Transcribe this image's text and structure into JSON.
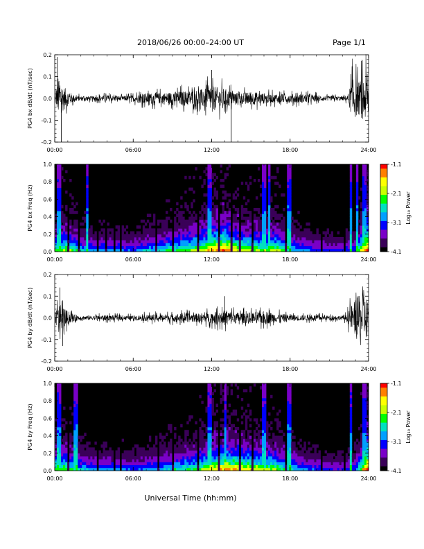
{
  "header": {
    "title": "2018/06/26  00:00–24:00 UT",
    "page": "Page 1/1"
  },
  "footer": {
    "xlabel": "Universal Time (hh:mm)"
  },
  "colors": {
    "trace": "#000000",
    "background": "#ffffff",
    "spectrogram_background": "#000000",
    "colormap": [
      "#000000",
      "#3a0058",
      "#7a00c8",
      "#0000ff",
      "#00a0ff",
      "#00e0c0",
      "#00ff00",
      "#c8ff00",
      "#ffff00",
      "#ff8000",
      "#ff0000"
    ]
  },
  "chart_data": [
    {
      "type": "line",
      "ylabel": "PG4 bx dB/dt (nT/sec)",
      "xlim": [
        0,
        24
      ],
      "ylim": [
        -0.2,
        0.2
      ],
      "xticks": [
        "00:00",
        "06:00",
        "12:00",
        "18:00",
        "24:00"
      ],
      "yticks": [
        "-0.2",
        "-0.1",
        "0.0",
        "0.1",
        "0.2"
      ],
      "envelope": {
        "x": [
          0.0,
          0.3,
          0.6,
          1.0,
          1.5,
          2.0,
          3.0,
          4.0,
          5.0,
          6.0,
          7.0,
          8.0,
          9.0,
          10.0,
          11.0,
          11.5,
          12.0,
          12.5,
          13.0,
          13.5,
          14.0,
          15.0,
          16.0,
          16.5,
          17.0,
          18.0,
          19.0,
          20.0,
          21.0,
          22.0,
          22.4,
          22.8,
          23.2,
          23.6,
          24.0
        ],
        "amp": [
          0.03,
          0.16,
          0.12,
          0.07,
          0.03,
          0.02,
          0.02,
          0.03,
          0.02,
          0.03,
          0.05,
          0.05,
          0.06,
          0.07,
          0.08,
          0.09,
          0.12,
          0.1,
          0.09,
          0.07,
          0.05,
          0.06,
          0.05,
          0.04,
          0.04,
          0.04,
          0.04,
          0.03,
          0.02,
          0.02,
          0.03,
          0.2,
          0.15,
          0.2,
          0.2
        ]
      },
      "spikes": [
        {
          "x": 0.2,
          "y": 0.19
        },
        {
          "x": 0.5,
          "y": -0.21
        },
        {
          "x": 12.0,
          "y": 0.13
        },
        {
          "x": 13.5,
          "y": -0.2
        }
      ]
    },
    {
      "type": "heatmap",
      "ylabel": "PG4 bx Freq (Hz)",
      "xlim": [
        0,
        24
      ],
      "ylim": [
        0.0,
        1.0
      ],
      "xticks": [
        "00:00",
        "06:00",
        "12:00",
        "18:00",
        "24:00"
      ],
      "yticks": [
        "0.0",
        "0.2",
        "0.4",
        "0.6",
        "0.8",
        "1.0"
      ],
      "colorbar": {
        "label": "Log₁₀ Power",
        "range": [
          -4.1,
          -1.1
        ],
        "ticks": [
          "-1.1",
          "-2.1",
          "-3.1",
          "-4.1"
        ]
      },
      "activity": {
        "x": [
          0,
          1,
          2,
          3,
          4,
          5,
          6,
          7,
          8,
          9,
          10,
          11,
          12,
          13,
          14,
          15,
          16,
          17,
          18,
          19,
          20,
          21,
          22,
          23,
          24
        ],
        "level": [
          0.5,
          0.6,
          0.4,
          0.35,
          0.35,
          0.35,
          0.3,
          0.4,
          0.45,
          0.5,
          0.55,
          0.6,
          0.75,
          0.8,
          0.65,
          0.6,
          0.55,
          0.6,
          0.45,
          0.35,
          0.3,
          0.25,
          0.25,
          0.35,
          0.95
        ]
      },
      "bright_columns": [
        0.3,
        2.5,
        11.8,
        16.0,
        16.4,
        17.9,
        22.6,
        23.1,
        23.6,
        23.8
      ],
      "dark_gaps": [
        1.0,
        1.9,
        3.3,
        3.9,
        4.6,
        5.1,
        7.8,
        9.1,
        10.4,
        11.0,
        12.6,
        13.5,
        14.1,
        15.2,
        17.6,
        20.4,
        22.2
      ]
    },
    {
      "type": "line",
      "ylabel": "PG4 by dB/dt (nT/sec)",
      "xlim": [
        0,
        24
      ],
      "ylim": [
        -0.2,
        0.2
      ],
      "xticks": [
        "00:00",
        "06:00",
        "12:00",
        "18:00",
        "24:00"
      ],
      "yticks": [
        "-0.2",
        "-0.1",
        "0.0",
        "0.1",
        "0.2"
      ],
      "envelope": {
        "x": [
          0.0,
          0.3,
          0.6,
          1.0,
          1.5,
          2.0,
          3.0,
          4.0,
          5.0,
          6.0,
          7.0,
          8.0,
          9.0,
          10.0,
          11.0,
          12.0,
          12.5,
          13.0,
          14.0,
          15.0,
          16.0,
          16.5,
          17.0,
          18.0,
          19.0,
          20.0,
          21.0,
          22.0,
          22.3,
          22.7,
          23.2,
          23.6,
          24.0
        ],
        "amp": [
          0.04,
          0.13,
          0.1,
          0.06,
          0.03,
          0.02,
          0.02,
          0.025,
          0.02,
          0.02,
          0.03,
          0.03,
          0.035,
          0.04,
          0.04,
          0.05,
          0.06,
          0.07,
          0.05,
          0.05,
          0.06,
          0.05,
          0.04,
          0.03,
          0.025,
          0.025,
          0.02,
          0.02,
          0.03,
          0.12,
          0.2,
          0.2,
          0.2
        ]
      },
      "spikes": [
        {
          "x": 0.4,
          "y": 0.14
        },
        {
          "x": 0.6,
          "y": -0.13
        },
        {
          "x": 13.0,
          "y": 0.1
        }
      ]
    },
    {
      "type": "heatmap",
      "ylabel": "PG4 by Freq (Hz)",
      "xlim": [
        0,
        24
      ],
      "ylim": [
        0.0,
        1.0
      ],
      "xticks": [
        "00:00",
        "06:00",
        "12:00",
        "18:00",
        "24:00"
      ],
      "yticks": [
        "0.0",
        "0.2",
        "0.4",
        "0.6",
        "0.8",
        "1.0"
      ],
      "colorbar": {
        "label": "Log₁₀ Power",
        "range": [
          -4.1,
          -1.1
        ],
        "ticks": [
          "-1.1",
          "-2.1",
          "-3.1",
          "-4.1"
        ]
      },
      "activity": {
        "x": [
          0,
          1,
          2,
          3,
          4,
          5,
          6,
          7,
          8,
          9,
          10,
          11,
          12,
          13,
          14,
          15,
          16,
          17,
          18,
          19,
          20,
          21,
          22,
          23,
          24
        ],
        "level": [
          0.55,
          0.55,
          0.4,
          0.35,
          0.35,
          0.35,
          0.3,
          0.35,
          0.4,
          0.45,
          0.5,
          0.55,
          0.65,
          0.75,
          0.7,
          0.65,
          0.6,
          0.55,
          0.45,
          0.35,
          0.3,
          0.25,
          0.25,
          0.3,
          0.95
        ]
      },
      "bright_columns": [
        0.3,
        1.6,
        11.8,
        13.0,
        16.0,
        17.9,
        22.6,
        23.6,
        23.8
      ],
      "dark_gaps": [
        1.0,
        2.4,
        3.3,
        4.0,
        4.6,
        5.1,
        7.9,
        9.1,
        10.4,
        11.0,
        12.6,
        13.6,
        14.1,
        15.2,
        17.6,
        20.4,
        22.2
      ]
    }
  ]
}
